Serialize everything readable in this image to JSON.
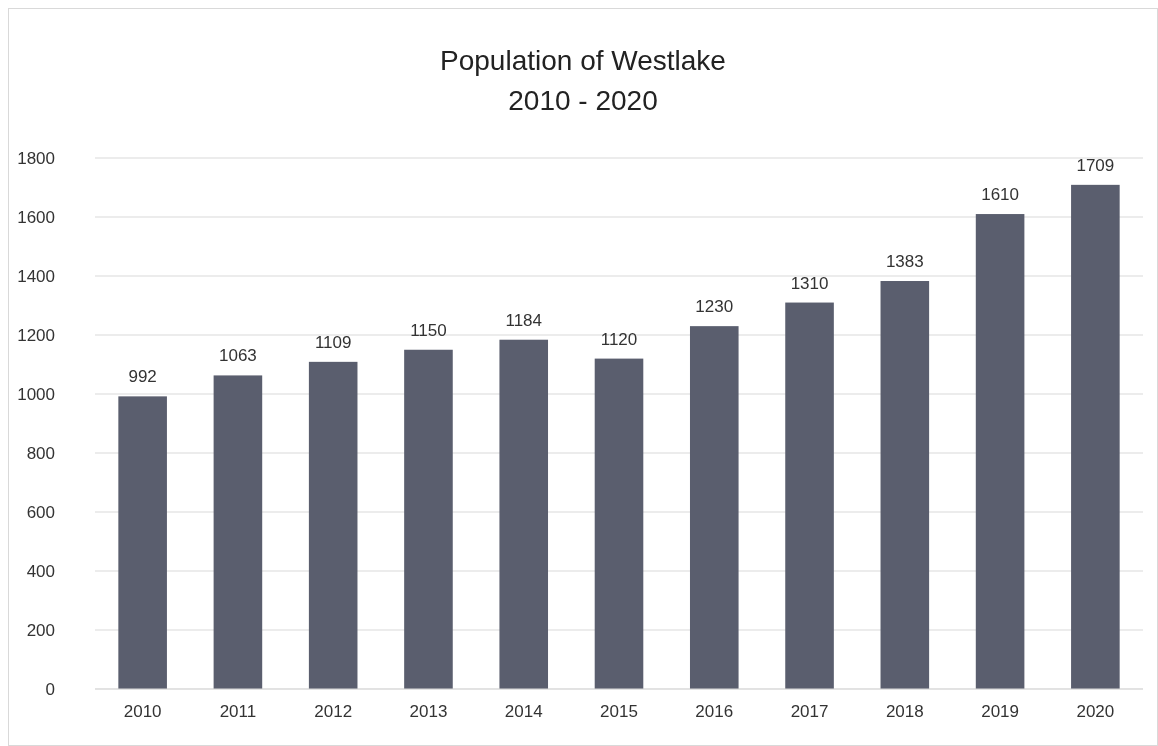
{
  "chart_data": {
    "type": "bar",
    "title": "Population of Westlake",
    "subtitle": "2010 - 2020",
    "categories": [
      "2010",
      "2011",
      "2012",
      "2013",
      "2014",
      "2015",
      "2016",
      "2017",
      "2018",
      "2019",
      "2020"
    ],
    "values": [
      992,
      1063,
      1109,
      1150,
      1184,
      1120,
      1230,
      1310,
      1383,
      1610,
      1709
    ],
    "color": "#5a5e6e",
    "ylim": [
      0,
      1800
    ],
    "yticks": [
      0,
      200,
      400,
      600,
      800,
      1000,
      1200,
      1400,
      1600,
      1800
    ],
    "grid": "y",
    "data_labels": true
  }
}
